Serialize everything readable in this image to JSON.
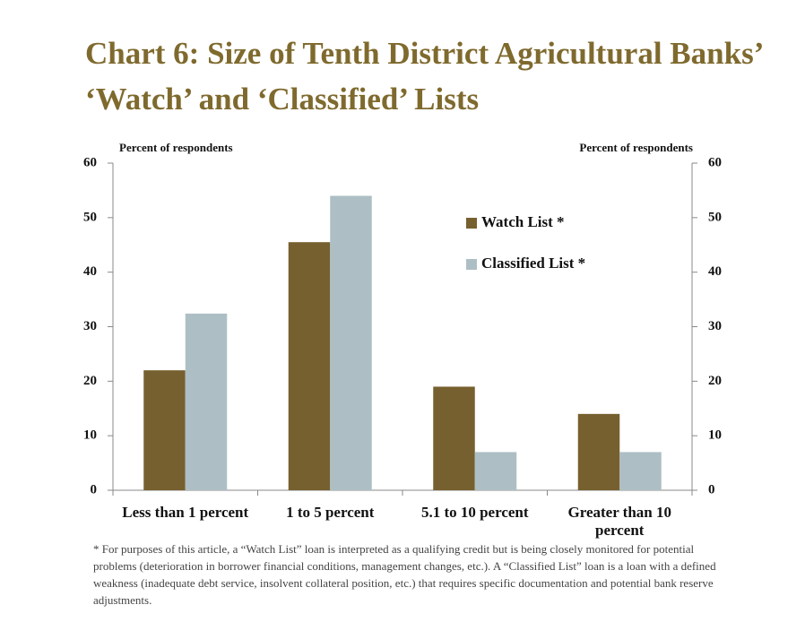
{
  "chart_data": {
    "type": "bar",
    "title": "Chart 6: Size of Tenth District Agricultural Banks’ ‘Watch’ and ‘Classified’ Lists",
    "y_label": "Percent of respondents",
    "y2_label": "Percent of respondents",
    "categories": [
      "Less than 1 percent",
      "1 to 5 percent",
      "5.1 to 10 percent",
      "Greater than 10 percent"
    ],
    "series": [
      {
        "name": "Watch List *",
        "color": "#77602f",
        "values": [
          22,
          45.5,
          19,
          14
        ]
      },
      {
        "name": "Classified List *",
        "color": "#adbfc4",
        "values": [
          32.4,
          54,
          7,
          7
        ]
      }
    ],
    "ylim": [
      0,
      60
    ],
    "yticks": [
      0,
      10,
      20,
      30,
      40,
      50,
      60
    ],
    "y2lim": [
      0,
      60
    ],
    "y2ticks": [
      0,
      10,
      20,
      30,
      40,
      50,
      60
    ],
    "footnote": "* For purposes of this article, a “Watch List” loan is interpreted as a qualifying credit but is being closely monitored for potential problems (deterioration in borrower financial conditions, management changes, etc.). A “Classified List” loan is a loan with a defined weakness (inadequate debt service, insolvent collateral position, etc.) that requires specific documentation and potential bank reserve adjustments."
  }
}
